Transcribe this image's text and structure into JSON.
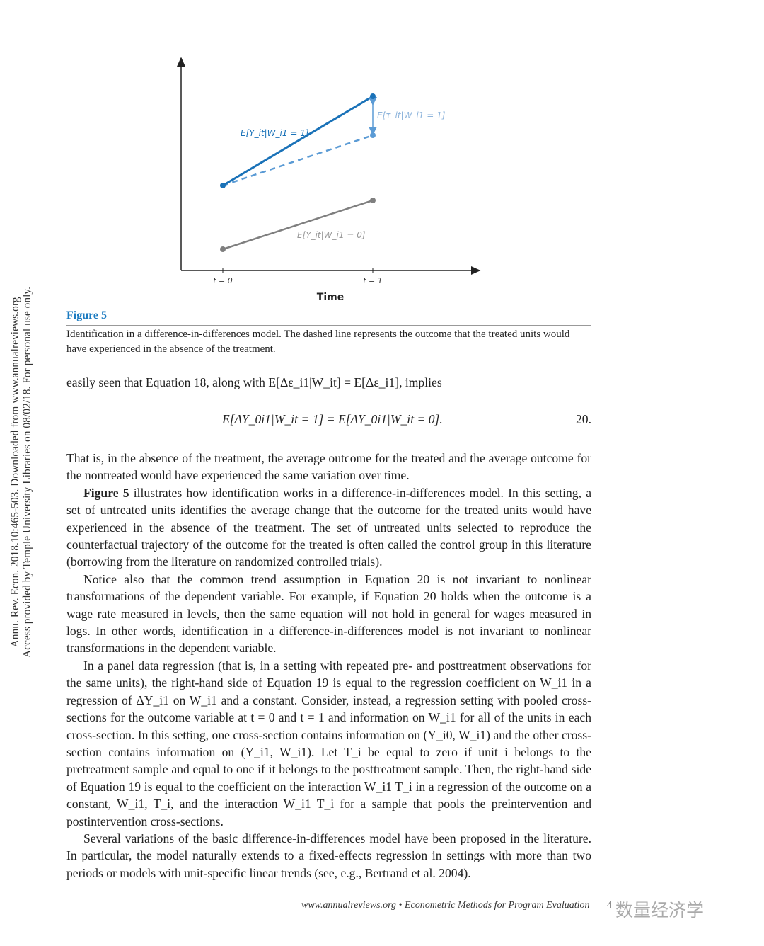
{
  "side_note": [
    "Annu. Rev. Econ. 2018.10:465-503. Downloaded from www.annualreviews.org",
    "Access provided by Temple University Libraries on 08/02/18. For personal use only."
  ],
  "figure": {
    "label_treated": "E[Y_it|W_i1 = 1]",
    "label_effect": "E[τ_it|W_i1 = 1]",
    "label_control": "E[Y_it|W_i1 = 0]",
    "tick_t0": "t = 0",
    "tick_t1": "t = 1",
    "xlabel": "Time",
    "colors": {
      "treated": "#1a72b8",
      "counterfactual": "#5b9bd5",
      "control": "#7f7f7f"
    },
    "title": "Figure 5",
    "caption": "Identification in a difference-in-differences model. The dashed line represents the outcome that the treated units would have experienced in the absence of the treatment."
  },
  "text": {
    "p0": "easily seen that Equation 18, along with E[Δε_i1|W_it] = E[Δε_i1], implies",
    "equation": "E[ΔY_0i1|W_it = 1] = E[ΔY_0i1|W_it = 0].",
    "equation_number": "20.",
    "p1": "That is, in the absence of the treatment, the average outcome for the treated and the average outcome for the nontreated would have experienced the same variation over time.",
    "p2_bold": "Figure 5",
    "p2": " illustrates how identification works in a difference-in-differences model. In this setting, a set of untreated units identifies the average change that the outcome for the treated units would have experienced in the absence of the treatment. The set of untreated units selected to reproduce the counterfactual trajectory of the outcome for the treated is often called the control group in this literature (borrowing from the literature on randomized controlled trials).",
    "p3": "Notice also that the common trend assumption in Equation 20 is not invariant to nonlinear transformations of the dependent variable. For example, if Equation 20 holds when the outcome is a wage rate measured in levels, then the same equation will not hold in general for wages measured in logs. In other words, identification in a difference-in-differences model is not invariant to nonlinear transformations in the dependent variable.",
    "p4": "In a panel data regression (that is, in a setting with repeated pre- and posttreatment observations for the same units), the right-hand side of Equation 19 is equal to the regression coefficient on W_i1 in a regression of ΔY_i1 on W_i1 and a constant. Consider, instead, a regression setting with pooled cross-sections for the outcome variable at t = 0 and t = 1 and information on W_i1 for all of the units in each cross-section. In this setting, one cross-section contains information on (Y_i0, W_i1) and the other cross-section contains information on (Y_i1, W_i1). Let T_i be equal to zero if unit i belongs to the pretreatment sample and equal to one if it belongs to the posttreatment sample. Then, the right-hand side of Equation 19 is equal to the coefficient on the interaction W_i1 T_i in a regression of the outcome on a constant, W_i1, T_i, and the interaction W_i1 T_i for a sample that pools the preintervention and postintervention cross-sections.",
    "p5": "Several variations of the basic difference-in-differences model have been proposed in the literature. In particular, the model naturally extends to a fixed-effects regression in settings with more than two periods or models with unit-specific linear trends (see, e.g., Bertrand et al. 2004)."
  },
  "footer": {
    "text": "www.annualreviews.org • Econometric Methods for Program Evaluation",
    "page": "4",
    "watermark": "数量经济学"
  }
}
